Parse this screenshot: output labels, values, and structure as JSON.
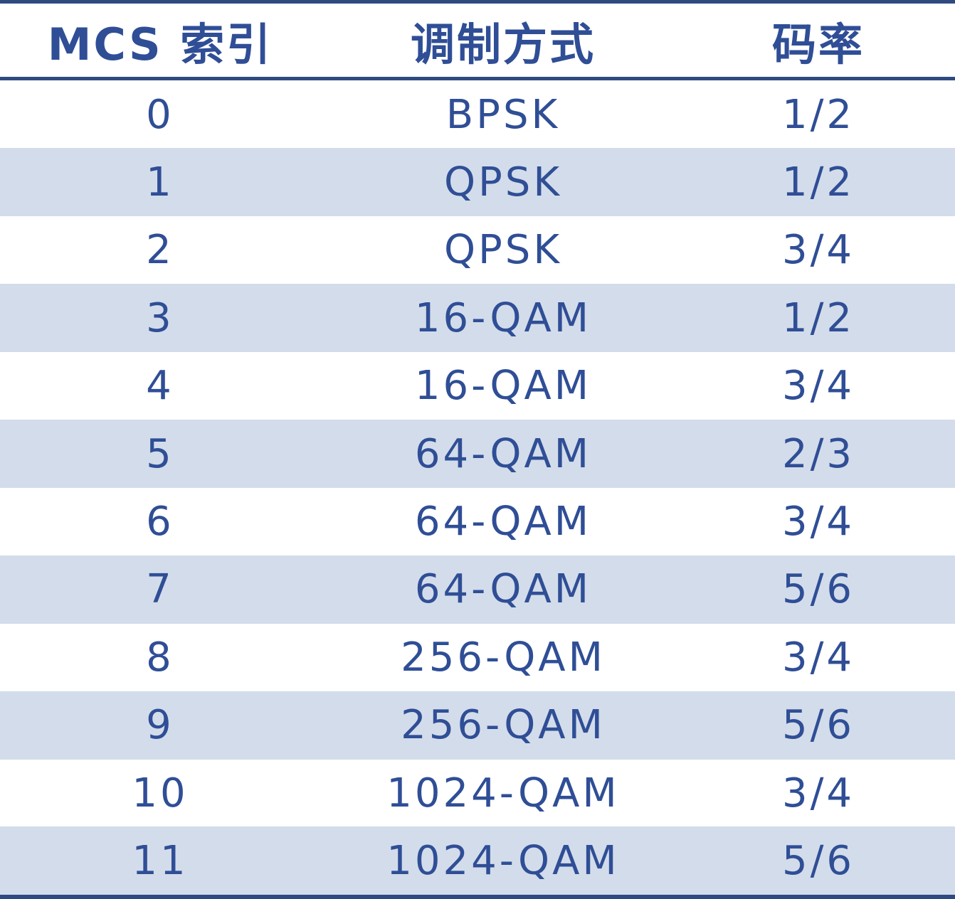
{
  "table": {
    "headers": [
      "MCS 索引",
      "调制方式",
      "码率"
    ],
    "rows": [
      [
        "0",
        "BPSK",
        "1/2"
      ],
      [
        "1",
        "QPSK",
        "1/2"
      ],
      [
        "2",
        "QPSK",
        "3/4"
      ],
      [
        "3",
        "16-QAM",
        "1/2"
      ],
      [
        "4",
        "16-QAM",
        "3/4"
      ],
      [
        "5",
        "64-QAM",
        "2/3"
      ],
      [
        "6",
        "64-QAM",
        "3/4"
      ],
      [
        "7",
        "64-QAM",
        "5/6"
      ],
      [
        "8",
        "256-QAM",
        "3/4"
      ],
      [
        "9",
        "256-QAM",
        "5/6"
      ],
      [
        "10",
        "1024-QAM",
        "3/4"
      ],
      [
        "11",
        "1024-QAM",
        "5/6"
      ]
    ]
  },
  "colors": {
    "text": "#2f4e96",
    "rule": "#2f4a80",
    "shaded_row": "#d3dcea"
  }
}
